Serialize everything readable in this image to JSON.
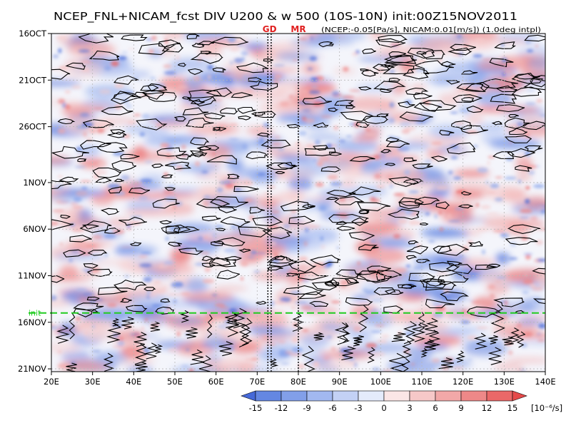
{
  "chart_data": {
    "type": "heatmap",
    "title": "NCEP_FNL+NICAM_fcst DIV U200 & w 500 (10S-10N) init:00Z15NOV2011",
    "annotation": "(NCEP:-0.05[Pa/s], NICAM:0.01[m/s]) (1.0deg intpl)",
    "x_ticks": [
      "20E",
      "30E",
      "40E",
      "50E",
      "60E",
      "70E",
      "80E",
      "90E",
      "100E",
      "110E",
      "120E",
      "130E",
      "140E"
    ],
    "x_tick_values": [
      20,
      30,
      40,
      50,
      60,
      70,
      80,
      90,
      100,
      110,
      120,
      130,
      140
    ],
    "xlim": [
      20,
      140
    ],
    "y_ticks": [
      "16OCT",
      "21OCT",
      "26OCT",
      "1NOV",
      "6NOV",
      "11NOV",
      "16NOV",
      "21NOV"
    ],
    "y_tick_days": [
      0,
      5,
      10,
      16,
      21,
      26,
      31,
      36
    ],
    "ylim_days": [
      0,
      36.3
    ],
    "init_label": "init",
    "init_day": 30,
    "markers": [
      {
        "label": "GD",
        "lon": 73
      },
      {
        "label": "MR",
        "lon": 80
      }
    ],
    "marker_lines_lon": [
      72.6,
      73.4,
      80.0
    ],
    "colorbar": {
      "ticks": [
        "-15",
        "-12",
        "-9",
        "-6",
        "-3",
        "0",
        "3",
        "6",
        "9",
        "12",
        "15"
      ],
      "tick_values": [
        -15,
        -12,
        -9,
        -6,
        -3,
        0,
        3,
        6,
        9,
        12,
        15
      ],
      "units": "[10⁻⁶/s]",
      "colors": [
        "#4669d8",
        "#6487e2",
        "#829fe9",
        "#a2b8f0",
        "#c3d1f5",
        "#e4ebfb",
        "#fbe6e6",
        "#f6c8c8",
        "#f2a8a8",
        "#ee8888",
        "#ea6868",
        "#e54a4a"
      ]
    },
    "colors": {
      "init_line": "#20cc20",
      "marker_text": "#e02020",
      "grid": "#b8b8b8",
      "contour": "#000000"
    },
    "grid": true
  }
}
